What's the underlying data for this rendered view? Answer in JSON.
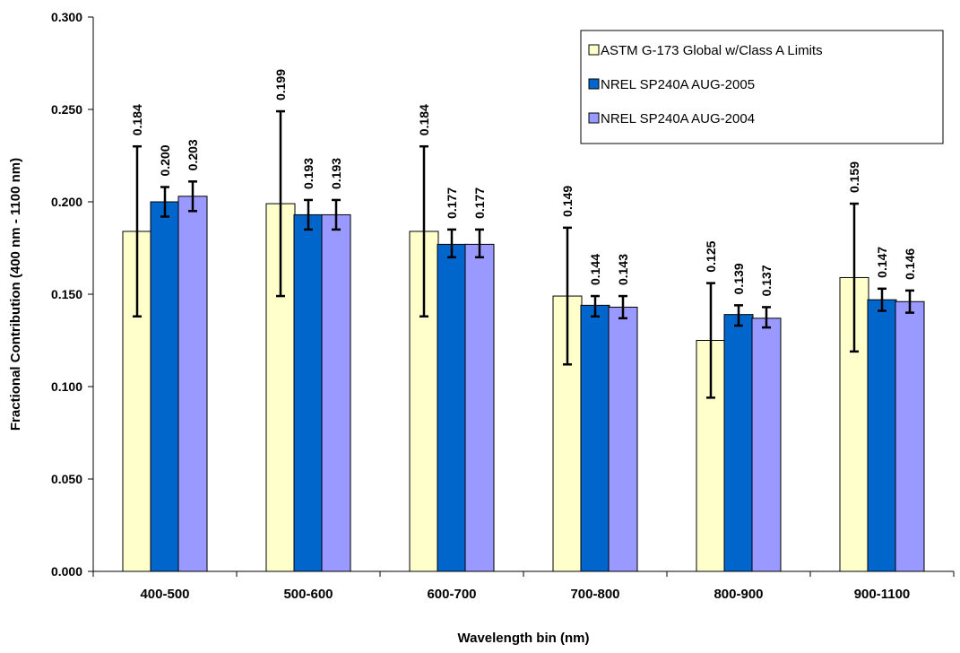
{
  "chart_data": {
    "type": "bar",
    "xlabel": "Wavelength bin (nm)",
    "ylabel": "Fractional Contribution (400 nm - 1100 nm)",
    "ylim": [
      0,
      0.3
    ],
    "yticks": [
      "0.000",
      "0.050",
      "0.100",
      "0.150",
      "0.200",
      "0.250",
      "0.300"
    ],
    "categories": [
      "400-500",
      "500-600",
      "600-700",
      "700-800",
      "800-900",
      "900-1100"
    ],
    "grid": false,
    "legend_position": "top-right",
    "series": [
      {
        "name": "ASTM G-173 Global w/Class A Limits",
        "color": "#ffffcc",
        "values": [
          0.184,
          0.199,
          0.184,
          0.149,
          0.125,
          0.159
        ],
        "labels": [
          "0.184",
          "0.199",
          "0.184",
          "0.149",
          "0.125",
          "0.159"
        ],
        "error_low": [
          0.138,
          0.149,
          0.138,
          0.112,
          0.094,
          0.119
        ],
        "error_high": [
          0.23,
          0.249,
          0.23,
          0.186,
          0.156,
          0.199
        ]
      },
      {
        "name": "NREL SP240A AUG-2005",
        "color": "#0066cc",
        "values": [
          0.2,
          0.193,
          0.177,
          0.144,
          0.139,
          0.147
        ],
        "labels": [
          "0.200",
          "0.193",
          "0.177",
          "0.144",
          "0.139",
          "0.147"
        ],
        "error_low": [
          0.192,
          0.185,
          0.17,
          0.138,
          0.133,
          0.141
        ],
        "error_high": [
          0.208,
          0.201,
          0.185,
          0.149,
          0.144,
          0.153
        ]
      },
      {
        "name": "NREL SP240A AUG-2004",
        "color": "#9999ff",
        "values": [
          0.203,
          0.193,
          0.177,
          0.143,
          0.137,
          0.146
        ],
        "labels": [
          "0.203",
          "0.193",
          "0.177",
          "0.143",
          "0.137",
          "0.146"
        ],
        "error_low": [
          0.195,
          0.185,
          0.17,
          0.137,
          0.132,
          0.14
        ],
        "error_high": [
          0.211,
          0.201,
          0.185,
          0.149,
          0.143,
          0.152
        ]
      }
    ]
  }
}
